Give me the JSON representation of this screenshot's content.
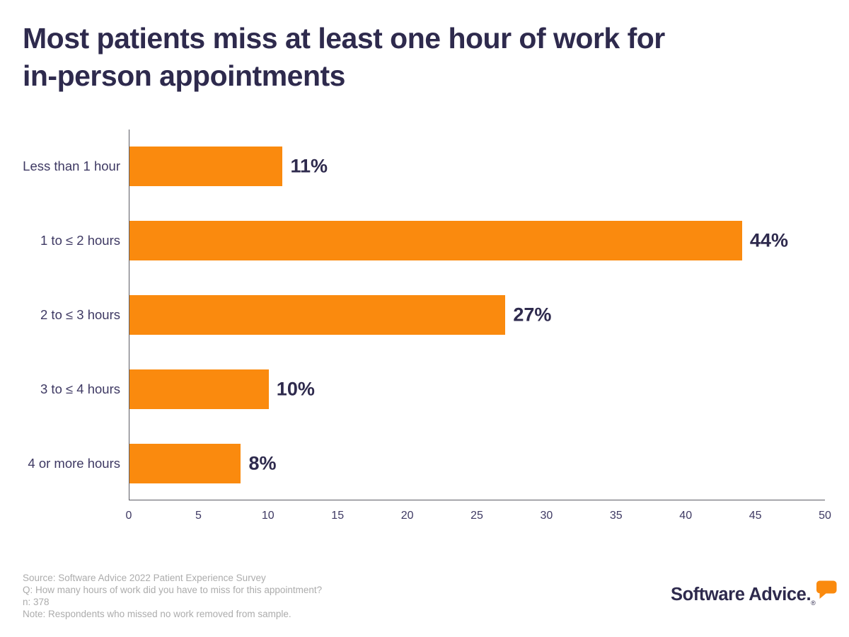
{
  "header": {
    "title_lines": [
      "Most patients miss at least one hour of work for",
      "in-person appointments"
    ]
  },
  "chart_data": {
    "type": "bar",
    "orientation": "horizontal",
    "title": "Most patients miss at least one hour of work for in-person appointments",
    "categories": [
      "Less than 1 hour",
      "1 to ≤ 2 hours",
      "2 to ≤ 3 hours",
      "3 to ≤ 4 hours",
      "4 or more hours"
    ],
    "values": [
      11,
      44,
      27,
      10,
      8
    ],
    "value_suffix": "%",
    "xlabel": "",
    "ylabel": "",
    "xlim": [
      0,
      50
    ],
    "x_ticks": [
      0,
      5,
      10,
      15,
      20,
      25,
      30,
      35,
      40,
      45,
      50
    ],
    "grid": false,
    "legend_position": "none",
    "bar_color": "#FA8A0E",
    "value_label_color": "#2E2A4D",
    "axis_color": "#5B5B64"
  },
  "footer": {
    "lines": [
      "Source: Software Advice 2022 Patient Experience Survey",
      "Q: How many hours of work did you have to miss for this appointment?",
      "n: 378",
      "Note: Respondents who missed no work removed from sample."
    ]
  },
  "branding": {
    "logo_text": "Software Advice.",
    "registered_mark": "®",
    "logo_accent_color": "#FA8A0E"
  },
  "colors": {
    "accent_orange": "#FA8A0E",
    "navy": "#2E2A4D",
    "label_slate": "#3E3963",
    "footnote_gray": "#ACACAC"
  }
}
